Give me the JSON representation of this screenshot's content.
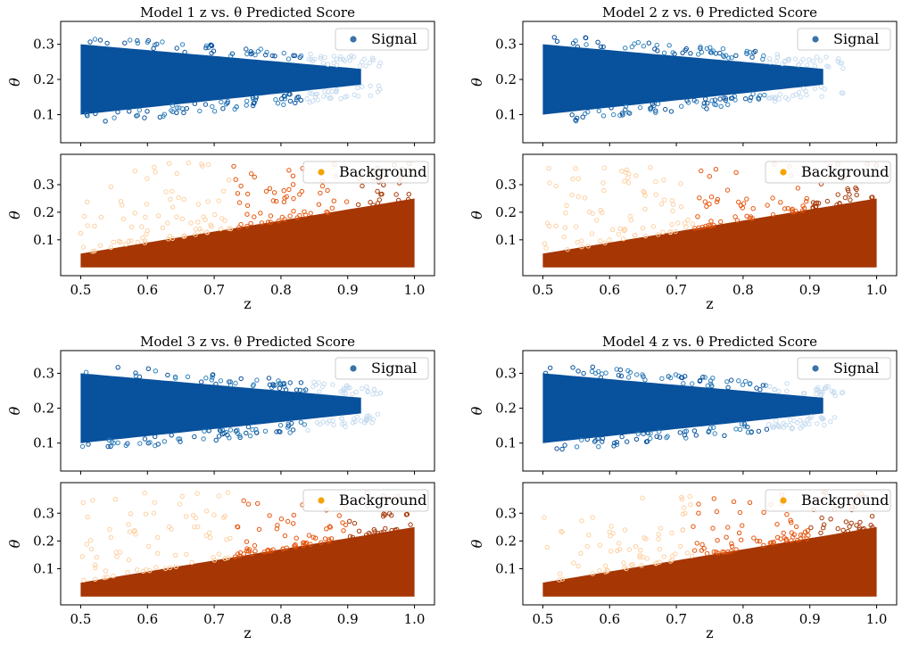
{
  "figure": {
    "colors": {
      "signal_dark": "#08519c",
      "signal_mid": "#3182bd",
      "signal_light": "#c6dbef",
      "signal_legend": "#3a73a8",
      "background_dark": "#a63603",
      "background_mid": "#e6550d",
      "background_light": "#fdd0a2",
      "background_legend": "#f5a300"
    }
  },
  "chart_data": [
    {
      "type": "scatter",
      "title": "Model 1 z vs. θ Predicted Score",
      "subplots": [
        {
          "name": "signal",
          "legend": "Signal",
          "xlabel": "",
          "ylabel": "θ",
          "xlim": [
            0.47,
            1.03
          ],
          "ylim": [
            0.02,
            0.365
          ],
          "yticks": [
            0.1,
            0.2,
            0.3
          ],
          "ytick_labels": [
            "0.1",
            "0.2",
            "0.3"
          ],
          "band": {
            "z_min": 0.5,
            "z_max": 0.92,
            "core_low": [
              0.1,
              0.185
            ],
            "core_high": [
              0.3,
              0.23
            ],
            "outlier_max": 0.34
          }
        },
        {
          "name": "background",
          "legend": "Background",
          "xlabel": "z",
          "ylabel": "θ",
          "xlim": [
            0.47,
            1.03
          ],
          "ylim": [
            -0.03,
            0.41
          ],
          "yticks": [
            0.1,
            0.2,
            0.3
          ],
          "ytick_labels": [
            "0.1",
            "0.2",
            "0.3"
          ],
          "xticks": [
            0.5,
            0.6,
            0.7,
            0.8,
            0.9,
            1.0
          ],
          "xtick_labels": [
            "0.5",
            "0.6",
            "0.7",
            "0.8",
            "0.9",
            "1.0"
          ],
          "band": {
            "z_min": 0.5,
            "z_max": 1.0,
            "core_low": [
              0.0,
              0.0
            ],
            "core_high": [
              0.05,
              0.25
            ],
            "outlier_max": 0.38
          }
        }
      ]
    },
    {
      "type": "scatter",
      "title": "Model 2 z vs. θ Predicted Score",
      "subplots": [
        {
          "name": "signal",
          "legend": "Signal",
          "xlabel": "",
          "ylabel": "θ",
          "xlim": [
            0.47,
            1.03
          ],
          "ylim": [
            0.02,
            0.365
          ],
          "yticks": [
            0.1,
            0.2,
            0.3
          ],
          "ytick_labels": [
            "0.1",
            "0.2",
            "0.3"
          ],
          "band": {
            "z_min": 0.5,
            "z_max": 0.92,
            "core_low": [
              0.1,
              0.185
            ],
            "core_high": [
              0.3,
              0.23
            ],
            "outlier_max": 0.34
          }
        },
        {
          "name": "background",
          "legend": "Background",
          "xlabel": "z",
          "ylabel": "θ",
          "xlim": [
            0.47,
            1.03
          ],
          "ylim": [
            -0.03,
            0.41
          ],
          "yticks": [
            0.1,
            0.2,
            0.3
          ],
          "ytick_labels": [
            "0.1",
            "0.2",
            "0.3"
          ],
          "xticks": [
            0.5,
            0.6,
            0.7,
            0.8,
            0.9,
            1.0
          ],
          "xtick_labels": [
            "0.5",
            "0.6",
            "0.7",
            "0.8",
            "0.9",
            "1.0"
          ],
          "band": {
            "z_min": 0.5,
            "z_max": 1.0,
            "core_low": [
              0.0,
              0.0
            ],
            "core_high": [
              0.05,
              0.25
            ],
            "outlier_max": 0.38
          }
        }
      ]
    },
    {
      "type": "scatter",
      "title": "Model 3 z vs. θ Predicted Score",
      "subplots": [
        {
          "name": "signal",
          "legend": "Signal",
          "xlabel": "",
          "ylabel": "θ",
          "xlim": [
            0.47,
            1.03
          ],
          "ylim": [
            0.02,
            0.365
          ],
          "yticks": [
            0.1,
            0.2,
            0.3
          ],
          "ytick_labels": [
            "0.1",
            "0.2",
            "0.3"
          ],
          "band": {
            "z_min": 0.5,
            "z_max": 0.92,
            "core_low": [
              0.1,
              0.185
            ],
            "core_high": [
              0.3,
              0.23
            ],
            "outlier_max": 0.34
          }
        },
        {
          "name": "background",
          "legend": "Background",
          "xlabel": "z",
          "ylabel": "θ",
          "xlim": [
            0.47,
            1.03
          ],
          "ylim": [
            -0.03,
            0.41
          ],
          "yticks": [
            0.1,
            0.2,
            0.3
          ],
          "ytick_labels": [
            "0.1",
            "0.2",
            "0.3"
          ],
          "xticks": [
            0.5,
            0.6,
            0.7,
            0.8,
            0.9,
            1.0
          ],
          "xtick_labels": [
            "0.5",
            "0.6",
            "0.7",
            "0.8",
            "0.9",
            "1.0"
          ],
          "band": {
            "z_min": 0.5,
            "z_max": 1.0,
            "core_low": [
              0.0,
              0.0
            ],
            "core_high": [
              0.05,
              0.25
            ],
            "outlier_max": 0.38
          }
        }
      ]
    },
    {
      "type": "scatter",
      "title": "Model 4 z vs. θ Predicted Score",
      "subplots": [
        {
          "name": "signal",
          "legend": "Signal",
          "xlabel": "",
          "ylabel": "θ",
          "xlim": [
            0.47,
            1.03
          ],
          "ylim": [
            0.02,
            0.365
          ],
          "yticks": [
            0.1,
            0.2,
            0.3
          ],
          "ytick_labels": [
            "0.1",
            "0.2",
            "0.3"
          ],
          "band": {
            "z_min": 0.5,
            "z_max": 0.92,
            "core_low": [
              0.1,
              0.185
            ],
            "core_high": [
              0.3,
              0.23
            ],
            "outlier_max": 0.34
          }
        },
        {
          "name": "background",
          "legend": "Background",
          "xlabel": "z",
          "ylabel": "θ",
          "xlim": [
            0.47,
            1.03
          ],
          "ylim": [
            -0.03,
            0.41
          ],
          "yticks": [
            0.1,
            0.2,
            0.3
          ],
          "ytick_labels": [
            "0.1",
            "0.2",
            "0.3"
          ],
          "xticks": [
            0.5,
            0.6,
            0.7,
            0.8,
            0.9,
            1.0
          ],
          "xtick_labels": [
            "0.5",
            "0.6",
            "0.7",
            "0.8",
            "0.9",
            "1.0"
          ],
          "band": {
            "z_min": 0.5,
            "z_max": 1.0,
            "core_low": [
              0.0,
              0.0
            ],
            "core_high": [
              0.05,
              0.25
            ],
            "outlier_max": 0.38
          }
        }
      ]
    }
  ]
}
